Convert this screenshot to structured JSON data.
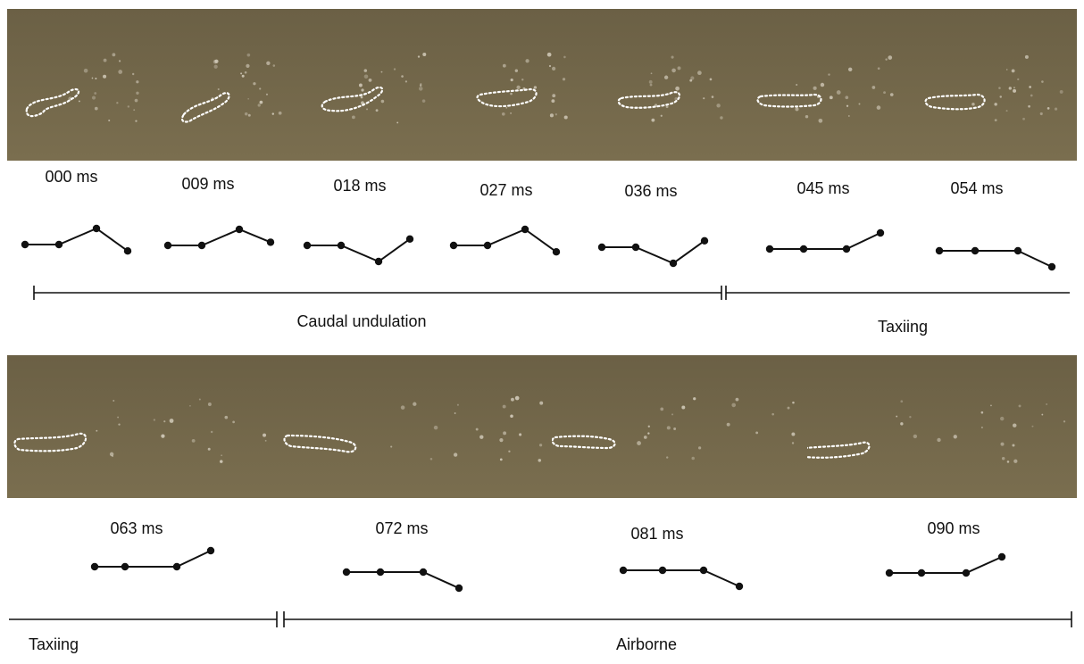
{
  "frames": [
    {
      "label": "000 ms",
      "angles": [
        0,
        0,
        1,
        -1
      ]
    },
    {
      "label": "009 ms",
      "angles": [
        0,
        0,
        1,
        0
      ]
    },
    {
      "label": "018 ms",
      "angles": [
        0,
        0,
        -1,
        1
      ]
    },
    {
      "label": "027 ms",
      "angles": [
        0,
        0,
        1,
        -1
      ]
    },
    {
      "label": "036 ms",
      "angles": [
        0,
        0,
        -1,
        1
      ]
    },
    {
      "label": "045 ms",
      "angles": [
        0,
        0,
        0,
        1
      ]
    },
    {
      "label": "054 ms",
      "angles": [
        0,
        0,
        0,
        -1
      ]
    },
    {
      "label": "063 ms",
      "angles": [
        0,
        0,
        0,
        1
      ]
    },
    {
      "label": "072 ms",
      "angles": [
        0,
        0,
        0,
        -1
      ]
    },
    {
      "label": "081 ms",
      "angles": [
        0,
        0,
        0,
        -1
      ]
    },
    {
      "label": "090 ms",
      "angles": [
        0,
        0,
        0,
        1
      ]
    }
  ],
  "phases": [
    {
      "label": "Caudal undulation"
    },
    {
      "label": "Taxiing"
    },
    {
      "label": "Taxiing"
    },
    {
      "label": "Airborne"
    }
  ],
  "colors": {
    "water": "#7a6e4f",
    "water_dark": "#6b6045",
    "outline": "#ffffff",
    "line": "#111111"
  }
}
